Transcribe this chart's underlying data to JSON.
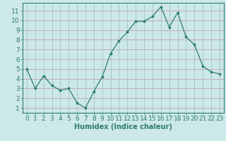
{
  "x": [
    0,
    1,
    2,
    3,
    4,
    5,
    6,
    7,
    8,
    9,
    10,
    11,
    12,
    13,
    14,
    15,
    16,
    17,
    18,
    19,
    20,
    21,
    22,
    23
  ],
  "y": [
    5.0,
    3.0,
    4.3,
    3.3,
    2.8,
    3.0,
    1.5,
    1.0,
    2.7,
    4.2,
    6.6,
    7.9,
    8.8,
    9.9,
    9.9,
    10.4,
    11.4,
    9.3,
    10.8,
    8.3,
    7.5,
    5.3,
    4.7,
    4.5
  ],
  "xlabel": "Humidex (Indice chaleur)",
  "ylim": [
    0.5,
    11.8
  ],
  "xlim": [
    -0.5,
    23.5
  ],
  "yticks": [
    1,
    2,
    3,
    4,
    5,
    6,
    7,
    8,
    9,
    10,
    11
  ],
  "xticks": [
    0,
    1,
    2,
    3,
    4,
    5,
    6,
    7,
    8,
    9,
    10,
    11,
    12,
    13,
    14,
    15,
    16,
    17,
    18,
    19,
    20,
    21,
    22,
    23
  ],
  "line_color": "#2e7d6e",
  "marker_color": "#2e7d6e",
  "bg_color": "#cce8e8",
  "hgrid_color": "#c8aab4",
  "vgrid_color": "#a8c8c8",
  "axis_color": "#2e7d6e",
  "tick_label_color": "#2e7d6e",
  "xlabel_color": "#2e7d6e",
  "xlabel_fontsize": 7,
  "tick_fontsize": 6.5
}
